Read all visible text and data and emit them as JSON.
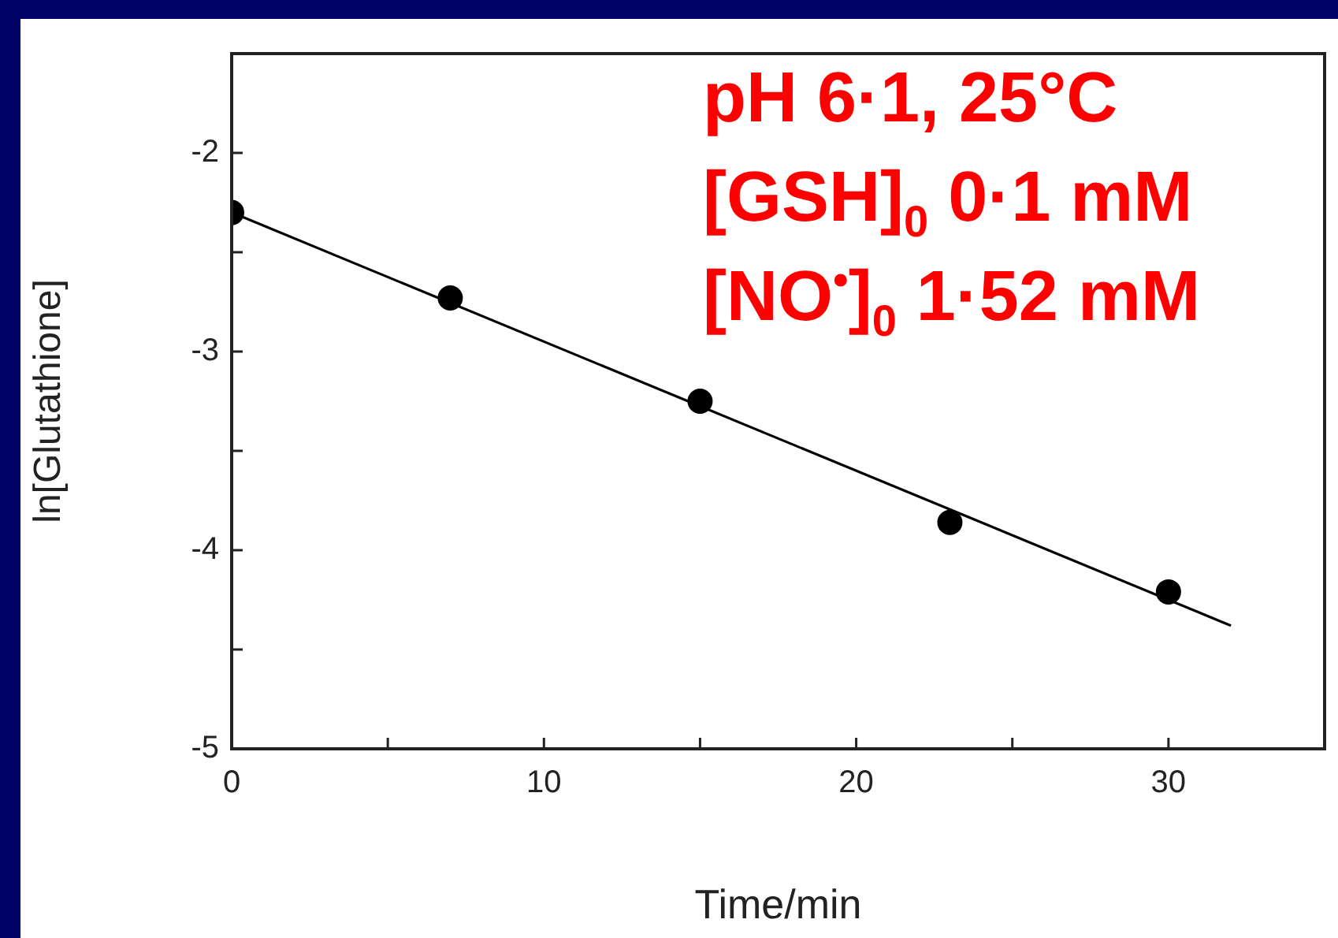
{
  "chart_data": {
    "type": "scatter",
    "xlabel": "Time/min",
    "ylabel": "ln[Glutathione]",
    "xlim": [
      0,
      35
    ],
    "xticks": [
      0,
      {
        "value": 5,
        "label": null
      },
      10,
      {
        "value": 15,
        "label": null
      },
      20,
      {
        "value": 25,
        "label": null
      },
      30
    ],
    "ylim": [
      -5,
      -1.5
    ],
    "yticks": [
      -5,
      {
        "value": -4.5,
        "label": null
      },
      -4,
      {
        "value": -3.5,
        "label": null
      },
      -3,
      {
        "value": -2.5,
        "label": null
      },
      -2
    ],
    "grid": false,
    "legend": false,
    "marker": "circle",
    "series": [
      {
        "color": "#000000",
        "x": [
          0,
          7,
          15,
          23,
          30
        ],
        "values": [
          -2.3,
          -2.73,
          -3.25,
          -3.86,
          -4.21
        ]
      },
      {
        "type": "line",
        "color": "#000000",
        "line_style": "solid",
        "marker": "none",
        "x": [
          0,
          32
        ],
        "values": [
          -2.3,
          -4.38
        ]
      }
    ],
    "annotations": [
      "pH 6·1, 25°C",
      "[GSH]$_{0}$ 0·1 mM",
      "[NO$^{•}$]$_{0}$ 1·52 mM"
    ]
  }
}
